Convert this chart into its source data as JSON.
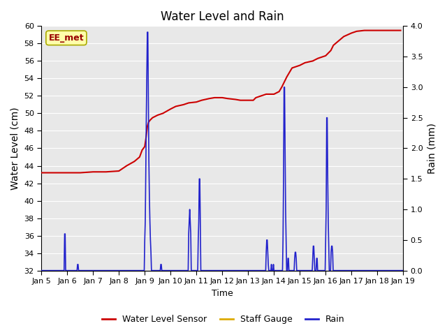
{
  "title": "Water Level and Rain",
  "xlabel": "Time",
  "ylabel_left": "Water Level (cm)",
  "ylabel_right": "Rain (mm)",
  "annotation": "EE_met",
  "ylim_left": [
    32,
    60
  ],
  "ylim_right": [
    0.0,
    4.0
  ],
  "yticks_left": [
    32,
    34,
    36,
    38,
    40,
    42,
    44,
    46,
    48,
    50,
    52,
    54,
    56,
    58,
    60
  ],
  "yticks_right": [
    0.0,
    0.5,
    1.0,
    1.5,
    2.0,
    2.5,
    3.0,
    3.5,
    4.0
  ],
  "water_level_color": "#cc0000",
  "rain_color": "#2222cc",
  "staff_gauge_color": "#ddaa00",
  "bg_color": "#e8e8e8",
  "annotation_bg": "#ffffaa",
  "annotation_border": "#aaaa00",
  "annotation_text_color": "#990000",
  "water_level_data": [
    [
      5.0,
      43.2
    ],
    [
      5.1,
      43.2
    ],
    [
      5.5,
      43.2
    ],
    [
      6.0,
      43.2
    ],
    [
      6.5,
      43.2
    ],
    [
      7.0,
      43.3
    ],
    [
      7.5,
      43.3
    ],
    [
      8.0,
      43.4
    ],
    [
      8.3,
      44.0
    ],
    [
      8.6,
      44.5
    ],
    [
      8.8,
      45.0
    ],
    [
      8.9,
      45.8
    ],
    [
      9.0,
      46.2
    ],
    [
      9.05,
      47.2
    ],
    [
      9.1,
      48.5
    ],
    [
      9.15,
      49.0
    ],
    [
      9.2,
      49.2
    ],
    [
      9.3,
      49.5
    ],
    [
      9.5,
      49.8
    ],
    [
      9.7,
      50.0
    ],
    [
      10.0,
      50.5
    ],
    [
      10.2,
      50.8
    ],
    [
      10.5,
      51.0
    ],
    [
      10.7,
      51.2
    ],
    [
      11.0,
      51.3
    ],
    [
      11.2,
      51.5
    ],
    [
      11.5,
      51.7
    ],
    [
      11.7,
      51.8
    ],
    [
      12.0,
      51.8
    ],
    [
      12.2,
      51.7
    ],
    [
      12.5,
      51.6
    ],
    [
      12.7,
      51.5
    ],
    [
      13.0,
      51.5
    ],
    [
      13.2,
      51.5
    ],
    [
      13.3,
      51.8
    ],
    [
      13.5,
      52.0
    ],
    [
      13.7,
      52.2
    ],
    [
      14.0,
      52.2
    ],
    [
      14.2,
      52.5
    ],
    [
      14.3,
      53.0
    ],
    [
      14.5,
      54.2
    ],
    [
      14.7,
      55.2
    ],
    [
      15.0,
      55.5
    ],
    [
      15.2,
      55.8
    ],
    [
      15.5,
      56.0
    ],
    [
      15.7,
      56.3
    ],
    [
      16.0,
      56.6
    ],
    [
      16.2,
      57.2
    ],
    [
      16.3,
      57.8
    ],
    [
      16.5,
      58.3
    ],
    [
      16.7,
      58.8
    ],
    [
      17.0,
      59.2
    ],
    [
      17.2,
      59.4
    ],
    [
      17.5,
      59.5
    ],
    [
      17.7,
      59.5
    ],
    [
      18.0,
      59.5
    ],
    [
      18.5,
      59.5
    ],
    [
      18.9,
      59.5
    ]
  ],
  "rain_data": [
    [
      5.0,
      0.0
    ],
    [
      5.88,
      0.0
    ],
    [
      5.9,
      0.6
    ],
    [
      5.92,
      0.6
    ],
    [
      5.94,
      0.0
    ],
    [
      6.38,
      0.0
    ],
    [
      6.4,
      0.1
    ],
    [
      6.42,
      0.1
    ],
    [
      6.44,
      0.0
    ],
    [
      8.98,
      0.0
    ],
    [
      9.0,
      0.5
    ],
    [
      9.02,
      0.8
    ],
    [
      9.04,
      1.6
    ],
    [
      9.06,
      2.5
    ],
    [
      9.08,
      3.2
    ],
    [
      9.1,
      3.9
    ],
    [
      9.12,
      3.9
    ],
    [
      9.14,
      2.8
    ],
    [
      9.16,
      1.8
    ],
    [
      9.18,
      1.2
    ],
    [
      9.2,
      0.8
    ],
    [
      9.22,
      0.5
    ],
    [
      9.24,
      0.3
    ],
    [
      9.26,
      0.0
    ],
    [
      9.6,
      0.0
    ],
    [
      9.62,
      0.1
    ],
    [
      9.64,
      0.1
    ],
    [
      9.66,
      0.0
    ],
    [
      10.68,
      0.0
    ],
    [
      10.7,
      0.6
    ],
    [
      10.72,
      0.8
    ],
    [
      10.74,
      1.0
    ],
    [
      10.76,
      0.8
    ],
    [
      10.78,
      0.6
    ],
    [
      10.8,
      0.0
    ],
    [
      11.05,
      0.0
    ],
    [
      11.07,
      0.5
    ],
    [
      11.09,
      0.8
    ],
    [
      11.11,
      1.5
    ],
    [
      11.13,
      1.5
    ],
    [
      11.15,
      0.8
    ],
    [
      11.17,
      0.0
    ],
    [
      13.68,
      0.0
    ],
    [
      13.7,
      0.3
    ],
    [
      13.72,
      0.5
    ],
    [
      13.74,
      0.5
    ],
    [
      13.76,
      0.3
    ],
    [
      13.78,
      0.1
    ],
    [
      13.8,
      0.0
    ],
    [
      13.88,
      0.0
    ],
    [
      13.9,
      0.1
    ],
    [
      13.92,
      0.0
    ],
    [
      13.96,
      0.0
    ],
    [
      13.98,
      0.1
    ],
    [
      14.0,
      0.0
    ],
    [
      14.33,
      0.0
    ],
    [
      14.35,
      0.5
    ],
    [
      14.37,
      1.5
    ],
    [
      14.39,
      3.0
    ],
    [
      14.41,
      3.0
    ],
    [
      14.43,
      2.0
    ],
    [
      14.45,
      1.0
    ],
    [
      14.47,
      0.5
    ],
    [
      14.49,
      0.0
    ],
    [
      14.52,
      0.0
    ],
    [
      14.54,
      0.2
    ],
    [
      14.56,
      0.2
    ],
    [
      14.58,
      0.0
    ],
    [
      14.78,
      0.0
    ],
    [
      14.8,
      0.2
    ],
    [
      14.82,
      0.3
    ],
    [
      14.84,
      0.3
    ],
    [
      14.86,
      0.2
    ],
    [
      14.88,
      0.0
    ],
    [
      15.48,
      0.0
    ],
    [
      15.5,
      0.2
    ],
    [
      15.52,
      0.4
    ],
    [
      15.54,
      0.4
    ],
    [
      15.56,
      0.2
    ],
    [
      15.58,
      0.0
    ],
    [
      15.63,
      0.0
    ],
    [
      15.65,
      0.2
    ],
    [
      15.67,
      0.2
    ],
    [
      15.69,
      0.0
    ],
    [
      15.98,
      0.0
    ],
    [
      16.0,
      0.5
    ],
    [
      16.02,
      1.0
    ],
    [
      16.04,
      2.5
    ],
    [
      16.06,
      2.5
    ],
    [
      16.08,
      1.5
    ],
    [
      16.1,
      0.8
    ],
    [
      16.12,
      0.4
    ],
    [
      16.14,
      0.0
    ],
    [
      16.19,
      0.0
    ],
    [
      16.21,
      0.3
    ],
    [
      16.23,
      0.4
    ],
    [
      16.25,
      0.4
    ],
    [
      16.27,
      0.3
    ],
    [
      16.29,
      0.0
    ],
    [
      19.0,
      0.0
    ]
  ],
  "xmin": 5.0,
  "xmax": 19.0,
  "xtick_positions": [
    5,
    6,
    7,
    8,
    9,
    10,
    11,
    12,
    13,
    14,
    15,
    16,
    17,
    18,
    19
  ],
  "xtick_labels": [
    "Jan 5",
    "Jan 6",
    "Jan 7",
    "Jan 8",
    "Jan 9",
    "Jan 10",
    "Jan 11",
    "Jan 12",
    "Jan 13",
    "Jan 14",
    "Jan 15",
    "Jan 16",
    "Jan 17",
    "Jan 18",
    "Jan 19"
  ]
}
